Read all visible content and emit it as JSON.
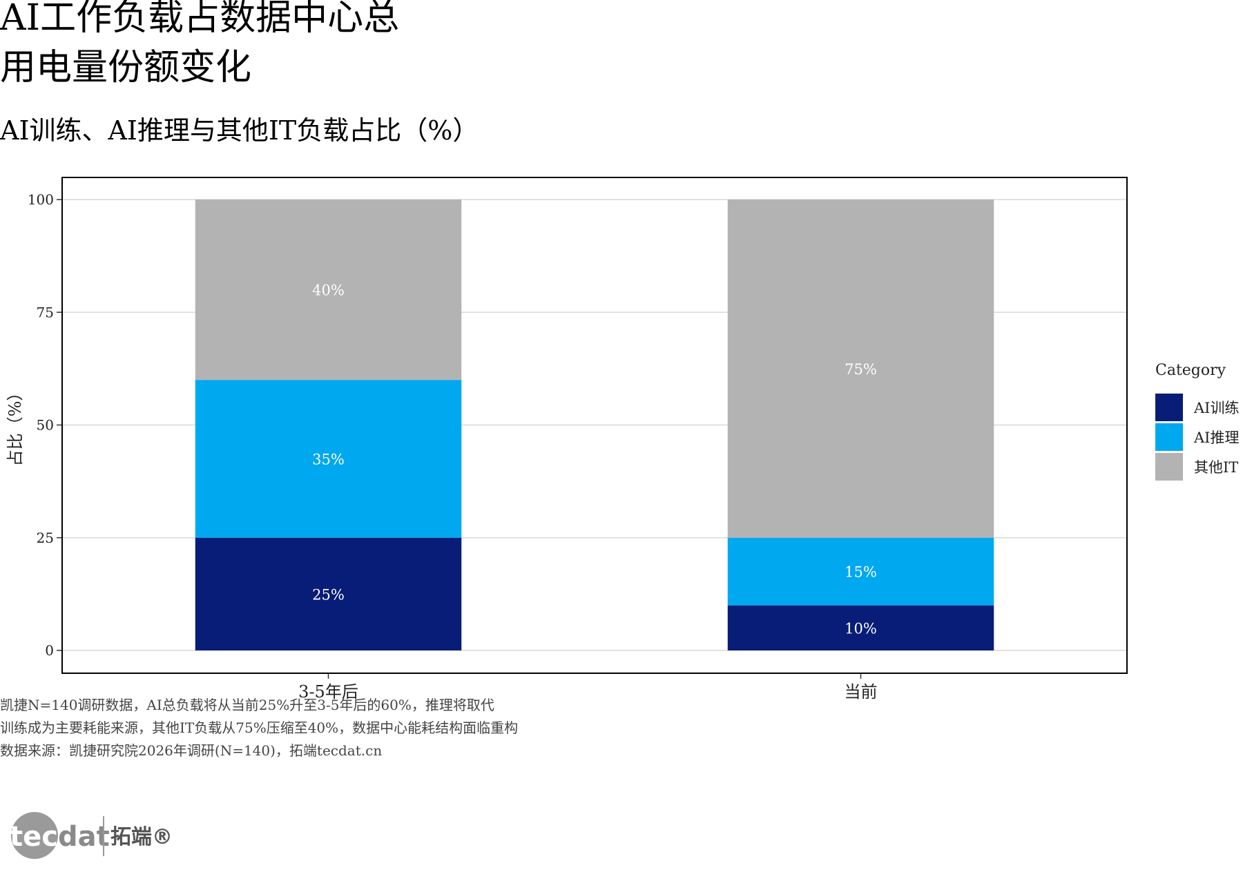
{
  "title_lines": [
    "AI工作负载占数据中心总",
    "用电量份额变化"
  ],
  "subtitle": "AI训练、AI推理与其他IT负载占比（%）",
  "caption_lines": [
    "凯捷N=140调研数据，AI总负载将从当前25%升至3-5年后的60%，推理将取代",
    "训练成为主要耗能来源，其他IT负载从75%压缩至40%，数据中心能耗结构面临重构",
    "数据来源：凯捷研究院2026年调研(N=140)，拓端tecdat.cn"
  ],
  "logo": {
    "text_en": "tecdat",
    "text_cn": "拓端®"
  },
  "chart_data": {
    "type": "bar",
    "stacked": true,
    "categories": [
      "3-5年后",
      "当前"
    ],
    "series": [
      {
        "name": "AI训练",
        "values": [
          25,
          10
        ],
        "color": "#081d77"
      },
      {
        "name": "AI推理",
        "values": [
          35,
          15
        ],
        "color": "#00a8f0"
      },
      {
        "name": "其他IT",
        "values": [
          40,
          75
        ],
        "color": "#b3b3b3"
      }
    ],
    "data_labels": [
      [
        "25%",
        "10%"
      ],
      [
        "35%",
        "15%"
      ],
      [
        "40%",
        "75%"
      ]
    ],
    "ylabel": "占比（%）",
    "xlabel": "",
    "ylim": [
      0,
      100
    ],
    "yticks": [
      0,
      25,
      50,
      75,
      100
    ],
    "grid": true,
    "legend": {
      "title": "Category",
      "position": "right"
    }
  }
}
